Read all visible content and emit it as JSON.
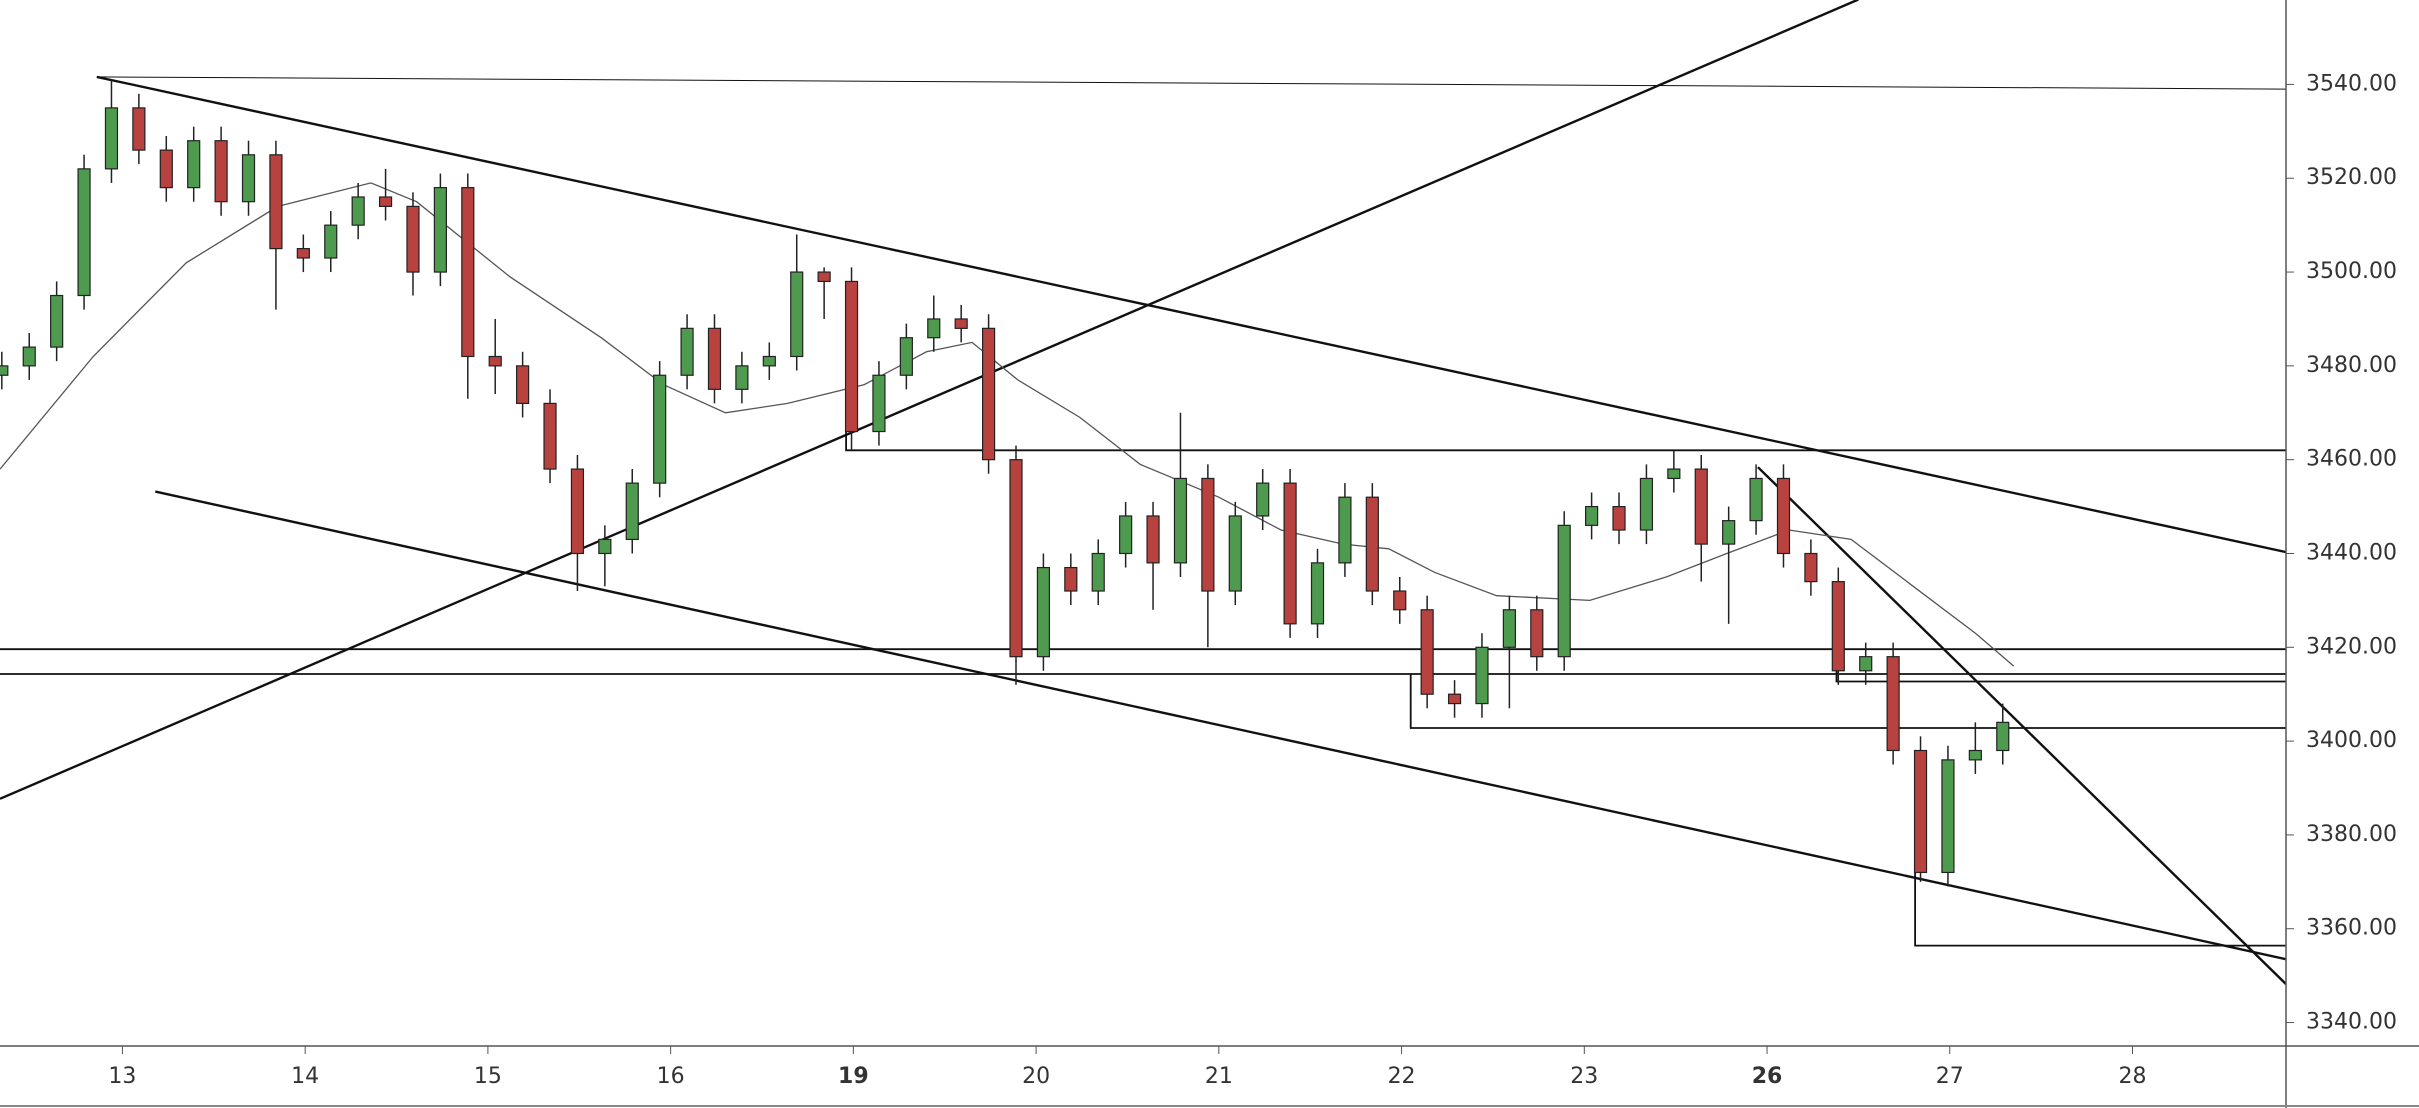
{
  "chart_data": {
    "type": "candlestick",
    "x": [
      -0.66,
      -0.51,
      -0.36,
      -0.21,
      -0.06,
      0.09,
      0.24,
      0.39,
      0.54,
      0.69,
      0.84,
      0.99,
      1.14,
      1.29,
      1.44,
      1.59,
      1.74,
      1.89,
      2.04,
      2.19,
      2.34,
      2.49,
      2.64,
      2.79,
      2.94,
      3.09,
      3.24,
      3.39,
      3.54,
      3.69,
      3.84,
      3.99,
      4.14,
      4.29,
      4.44,
      4.59,
      4.74,
      4.89,
      5.04,
      5.19,
      5.34,
      5.49,
      5.64,
      5.79,
      5.94,
      6.09,
      6.24,
      6.39,
      6.54,
      6.69,
      6.84,
      6.99,
      7.14,
      7.29,
      7.44,
      7.59,
      7.74,
      7.89,
      8.04,
      8.19,
      8.34,
      8.49,
      8.64,
      8.79,
      8.94,
      9.09,
      9.24,
      9.39,
      9.54,
      9.69,
      9.84,
      9.99,
      10.14,
      10.29
    ],
    "open": [
      3478,
      3480,
      3484,
      3495,
      3522,
      3535,
      3526,
      3518,
      3528,
      3515,
      3525,
      3505,
      3503,
      3510,
      3516,
      3514,
      3500,
      3518,
      3482,
      3480,
      3472,
      3458,
      3440,
      3443,
      3455,
      3478,
      3488,
      3475,
      3480,
      3482,
      3500,
      3498,
      3466,
      3478,
      3486,
      3490,
      3488,
      3460,
      3418,
      3437,
      3432,
      3440,
      3448,
      3438,
      3456,
      3432,
      3448,
      3455,
      3425,
      3438,
      3452,
      3432,
      3428,
      3410,
      3408,
      3420,
      3428,
      3418,
      3446,
      3450,
      3445,
      3456,
      3458,
      3442,
      3447,
      3456,
      3440,
      3434,
      3415,
      3418,
      3398,
      3372,
      3396,
      3398
    ],
    "high": [
      3483,
      3487,
      3498,
      3525,
      3541,
      3538,
      3529,
      3531,
      3531,
      3528,
      3528,
      3508,
      3513,
      3519,
      3522,
      3517,
      3521,
      3521,
      3490,
      3483,
      3475,
      3461,
      3446,
      3458,
      3481,
      3491,
      3491,
      3483,
      3485,
      3508,
      3501,
      3501,
      3481,
      3489,
      3495,
      3493,
      3491,
      3463,
      3440,
      3440,
      3443,
      3451,
      3451,
      3470,
      3459,
      3451,
      3458,
      3458,
      3441,
      3455,
      3455,
      3435,
      3431,
      3413,
      3423,
      3431,
      3431,
      3449,
      3453,
      3453,
      3459,
      3462,
      3461,
      3450,
      3459,
      3459,
      3443,
      3437,
      3421,
      3421,
      3401,
      3399,
      3404,
      3408
    ],
    "low": [
      3475,
      3477,
      3481,
      3492,
      3519,
      3523,
      3515,
      3515,
      3512,
      3512,
      3492,
      3500,
      3500,
      3507,
      3511,
      3495,
      3497,
      3473,
      3474,
      3469,
      3455,
      3432,
      3433,
      3440,
      3452,
      3475,
      3472,
      3472,
      3477,
      3479,
      3490,
      3462,
      3463,
      3475,
      3483,
      3485,
      3457,
      3412,
      3415,
      3429,
      3429,
      3437,
      3428,
      3435,
      3420,
      3429,
      3445,
      3422,
      3422,
      3435,
      3429,
      3425,
      3407,
      3405,
      3405,
      3407,
      3415,
      3415,
      3443,
      3442,
      3442,
      3453,
      3434,
      3425,
      3444,
      3437,
      3431,
      3412,
      3412,
      3395,
      3370,
      3369,
      3393,
      3395
    ],
    "close": [
      3480,
      3484,
      3495,
      3522,
      3535,
      3526,
      3518,
      3528,
      3515,
      3525,
      3505,
      3503,
      3510,
      3516,
      3514,
      3500,
      3518,
      3482,
      3480,
      3472,
      3458,
      3440,
      3443,
      3455,
      3478,
      3488,
      3475,
      3480,
      3482,
      3500,
      3498,
      3466,
      3478,
      3486,
      3490,
      3488,
      3460,
      3418,
      3437,
      3432,
      3440,
      3448,
      3438,
      3456,
      3432,
      3448,
      3455,
      3425,
      3438,
      3452,
      3432,
      3428,
      3410,
      3408,
      3420,
      3428,
      3418,
      3446,
      3450,
      3445,
      3456,
      3458,
      3442,
      3447,
      3456,
      3440,
      3434,
      3415,
      3418,
      3398,
      3372,
      3396,
      3398,
      3404
    ],
    "up_color": "#4e9a4e",
    "down_color": "#b8423f",
    "ma": {
      "color": "#555555",
      "x": [
        -0.67,
        -0.16,
        0.35,
        0.85,
        1.36,
        1.61,
        2.12,
        2.62,
        2.96,
        3.3,
        3.64,
        4.06,
        4.4,
        4.65,
        4.9,
        5.24,
        5.57,
        6.0,
        6.34,
        6.68,
        6.93,
        7.18,
        7.52,
        8.03,
        8.45,
        8.78,
        9.12,
        9.46,
        9.8,
        10.14,
        10.35
      ],
      "values": [
        3458,
        3482,
        3502,
        3514,
        3519,
        3515,
        3499,
        3486,
        3476,
        3470,
        3472,
        3476,
        3483,
        3485,
        3477,
        3469,
        3459,
        3452,
        3445,
        3442,
        3441,
        3436,
        3431,
        3430,
        3435,
        3440,
        3445,
        3443,
        3433,
        3423,
        3416
      ]
    },
    "lines": [
      {
        "x": [
          -0.14,
          11.84
        ],
        "y": [
          3541.6,
          3539.0
        ],
        "width": 1
      },
      {
        "x": [
          -0.14,
          11.84
        ],
        "y": [
          3541.6,
          3440.3
        ],
        "width": 2.4
      },
      {
        "x": [
          -0.67,
          9.5
        ],
        "y": [
          3387.7,
          3558.1
        ],
        "width": 2.4
      },
      {
        "x": [
          0.18,
          11.84
        ],
        "y": [
          3453.2,
          3353.5
        ],
        "width": 2.4
      },
      {
        "x": [
          8.95,
          11.84
        ],
        "y": [
          3458.4,
          3348.2
        ],
        "width": 2.4
      },
      {
        "x": [
          3.96,
          3.96,
          11.84
        ],
        "y": [
          3471.9,
          3462.0,
          3462.0
        ],
        "width": 1.8
      },
      {
        "x": [
          -0.67,
          11.84
        ],
        "y": [
          3419.6,
          3419.6
        ],
        "width": 1.8
      },
      {
        "x": [
          -0.67,
          11.84
        ],
        "y": [
          3414.3,
          3414.3
        ],
        "width": 1.8
      },
      {
        "x": [
          9.38,
          9.38,
          11.84
        ],
        "y": [
          3418.3,
          3412.7,
          3412.7
        ],
        "width": 1.8
      },
      {
        "x": [
          7.05,
          7.05,
          11.84
        ],
        "y": [
          3414.3,
          3402.8,
          3402.8
        ],
        "width": 1.8
      },
      {
        "x": [
          9.81,
          9.81,
          11.84
        ],
        "y": [
          3371.9,
          3356.4,
          3356.4
        ],
        "width": 1.8
      }
    ],
    "xlim": [
      -0.67,
      11.84
    ],
    "ylim": [
      3335,
      3558
    ],
    "yticks": [
      {
        "value": 3340,
        "label": "3340.00"
      },
      {
        "value": 3360,
        "label": "3360.00"
      },
      {
        "value": 3380,
        "label": "3380.00"
      },
      {
        "value": 3400,
        "label": "3400.00"
      },
      {
        "value": 3420,
        "label": "3420.00"
      },
      {
        "value": 3440,
        "label": "3440.00"
      },
      {
        "value": 3460,
        "label": "3460.00"
      },
      {
        "value": 3480,
        "label": "3480.00"
      },
      {
        "value": 3500,
        "label": "3500.00"
      },
      {
        "value": 3520,
        "label": "3520.00"
      },
      {
        "value": 3540,
        "label": "3540.00"
      }
    ],
    "xticks": [
      {
        "value": 0,
        "label": "13"
      },
      {
        "value": 1,
        "label": "14"
      },
      {
        "value": 2,
        "label": "15"
      },
      {
        "value": 3,
        "label": "16"
      },
      {
        "value": 4,
        "label": "19",
        "bold": true
      },
      {
        "value": 5,
        "label": "20"
      },
      {
        "value": 6,
        "label": "21"
      },
      {
        "value": 7,
        "label": "22"
      },
      {
        "value": 8,
        "label": "23"
      },
      {
        "value": 9,
        "label": "26",
        "bold": true
      },
      {
        "value": 10,
        "label": "27"
      },
      {
        "value": 11,
        "label": "28"
      }
    ]
  }
}
